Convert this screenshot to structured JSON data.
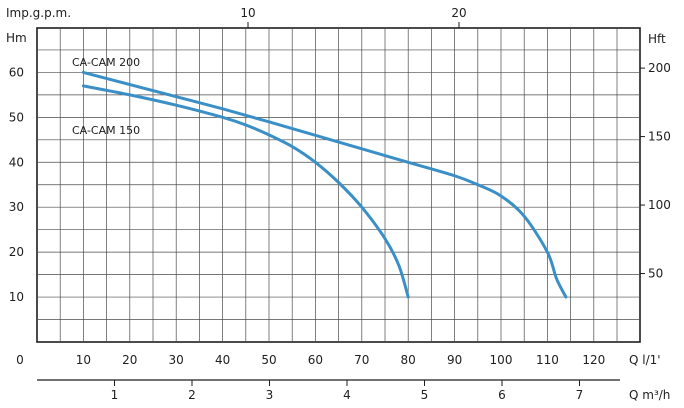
{
  "chart_data": {
    "type": "line",
    "title": "",
    "grid": true,
    "y_left": {
      "label": "Hm",
      "ticks": [
        10,
        20,
        30,
        40,
        50,
        60
      ],
      "ylim": [
        0,
        70
      ]
    },
    "y_right": {
      "label": "Hft",
      "ticks": [
        50,
        100,
        150,
        200
      ]
    },
    "x_bottom_primary": {
      "label": "Q l/1'",
      "zero_label": "0",
      "ticks": [
        10,
        20,
        30,
        40,
        50,
        60,
        70,
        80,
        90,
        100,
        110,
        120
      ],
      "xlim": [
        0,
        130
      ]
    },
    "x_bottom_secondary": {
      "label": "Q m³/h",
      "ticks": [
        1,
        2,
        3,
        4,
        5,
        6,
        7
      ]
    },
    "x_top": {
      "label": "Imp.g.p.m.",
      "ticks": [
        10,
        20
      ]
    },
    "series": [
      {
        "name": "CA-CAM 200",
        "color": "#3a8fc7",
        "x": [
          10,
          20,
          30,
          40,
          50,
          60,
          70,
          80,
          90,
          95,
          100,
          105,
          110,
          112,
          114
        ],
        "y": [
          60,
          57.3,
          54.6,
          51.9,
          49,
          46,
          43,
          40,
          37,
          35,
          32.5,
          28,
          20,
          14,
          10
        ]
      },
      {
        "name": "CA-CAM 150",
        "color": "#3a8fc7",
        "x": [
          10,
          20,
          30,
          40,
          45,
          50,
          55,
          60,
          65,
          70,
          75,
          78,
          80
        ],
        "y": [
          57,
          55,
          52.7,
          50,
          48.3,
          46.1,
          43.5,
          40,
          35.5,
          30,
          23,
          17,
          10
        ]
      }
    ]
  }
}
